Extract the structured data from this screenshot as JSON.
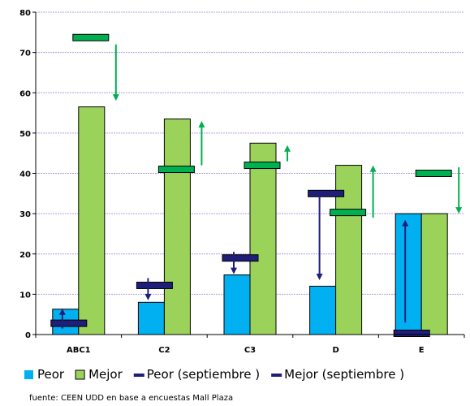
{
  "chart_data": {
    "type": "bar",
    "categories": [
      "ABC1",
      "C2",
      "C3",
      "D",
      "E"
    ],
    "series": [
      {
        "name": "Peor",
        "kind": "bar",
        "color": "#00b0f0",
        "values": [
          6.3,
          8,
          14.8,
          12,
          30
        ]
      },
      {
        "name": "Mejor",
        "kind": "bar",
        "color": "#9bd35a",
        "values": [
          56.5,
          53.5,
          47.5,
          42,
          30
        ]
      },
      {
        "name": "Peor (septiembre )",
        "kind": "marker",
        "color": "#00b050",
        "values": [
          73.7,
          41,
          42,
          30.3,
          40
        ]
      },
      {
        "name": "Mejor (septiembre )",
        "kind": "marker",
        "color": "#1f1f7a",
        "values": [
          2.8,
          12.2,
          19,
          35,
          0.3
        ]
      }
    ],
    "change_arrows": [
      {
        "category": "ABC1",
        "color": "#1f1f7a",
        "from": 1.5,
        "to": 6.5
      },
      {
        "category": "ABC1",
        "color": "#00b050",
        "from": 72,
        "to": 58
      },
      {
        "category": "C2",
        "color": "#1f1f7a",
        "from": 14,
        "to": 8.5
      },
      {
        "category": "C2",
        "color": "#00b050",
        "from": 42,
        "to": 53
      },
      {
        "category": "C3",
        "color": "#1f1f7a",
        "from": 20.5,
        "to": 15
      },
      {
        "category": "C3",
        "color": "#00b050",
        "from": 43,
        "to": 47
      },
      {
        "category": "D",
        "color": "#1f1f7a",
        "from": 34.5,
        "to": 13.5
      },
      {
        "category": "D",
        "color": "#00b050",
        "from": 29,
        "to": 42
      },
      {
        "category": "E",
        "color": "#1f1f7a",
        "from": 3,
        "to": 28.5
      },
      {
        "category": "E",
        "color": "#00b050",
        "from": 41.5,
        "to": 30
      }
    ],
    "ylim": [
      0,
      80
    ],
    "yticks": [
      0,
      10,
      20,
      30,
      40,
      50,
      60,
      70,
      80
    ],
    "grid": true,
    "legend_position": "bottom"
  },
  "source_note": "fuente: CEEN UDD en base a encuestas Mall Plaza"
}
